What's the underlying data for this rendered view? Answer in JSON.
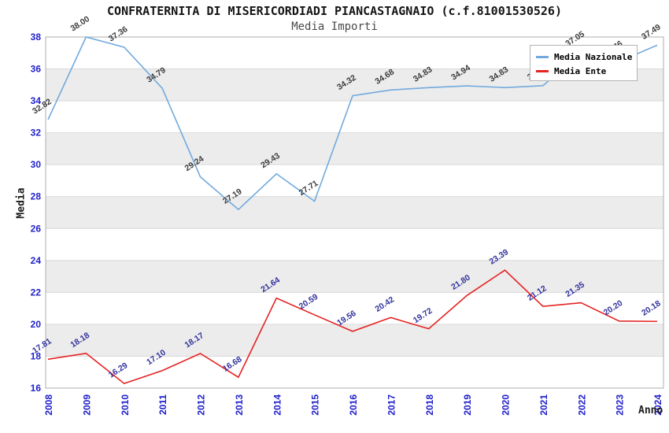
{
  "title": "CONFRATERNITA DI MISERICORDIADI PIANCASTAGNAIO (c.f.81001530526)",
  "subtitle": "Media Importi",
  "colors": {
    "background": "#ffffff",
    "band_gray": "#ececec",
    "grid_line": "#d9d9d9",
    "plot_border": "#aeaeae",
    "axis_tick": "#2121cc",
    "legend_border": "#b4b4b4"
  },
  "axes": {
    "y_label": "Media",
    "x_label": "Anno",
    "y_ticks": [
      16,
      18,
      20,
      22,
      24,
      26,
      28,
      30,
      32,
      34,
      36,
      38
    ]
  },
  "legend": {
    "position": "top-right",
    "items": [
      {
        "label": "Media Nazionale",
        "color": "#72aadd"
      },
      {
        "label": "Media Ente",
        "color": "#e62222"
      }
    ]
  },
  "chart_data": {
    "type": "line",
    "title": "CONFRATERNITA DI MISERICORDIADI PIANCASTAGNAIO (c.f.81001530526)",
    "subtitle": "Media Importi",
    "xlabel": "Anno",
    "ylabel": "Media",
    "ylim": [
      16,
      38
    ],
    "grid": true,
    "legend_position": "top-right",
    "categories": [
      "2008",
      "2009",
      "2010",
      "2011",
      "2012",
      "2013",
      "2014",
      "2015",
      "2016",
      "2017",
      "2018",
      "2019",
      "2020",
      "2021",
      "2022",
      "2023",
      "2024"
    ],
    "series": [
      {
        "name": "Media Nazionale",
        "key": "media-nazionale",
        "color": "#72aadd",
        "label_color": "#3c3c3c",
        "values": [
          32.82,
          38.0,
          37.36,
          34.79,
          29.24,
          27.19,
          29.43,
          27.71,
          34.32,
          34.68,
          34.83,
          34.94,
          34.83,
          34.95,
          37.05,
          36.46,
          37.49
        ]
      },
      {
        "name": "Media Ente",
        "key": "media-ente",
        "color": "#e62222",
        "label_color": "#32329e",
        "values": [
          17.81,
          18.18,
          16.29,
          17.1,
          18.17,
          16.68,
          21.64,
          20.59,
          19.56,
          20.42,
          19.72,
          21.8,
          23.39,
          21.12,
          21.35,
          20.2,
          20.18
        ]
      }
    ]
  }
}
